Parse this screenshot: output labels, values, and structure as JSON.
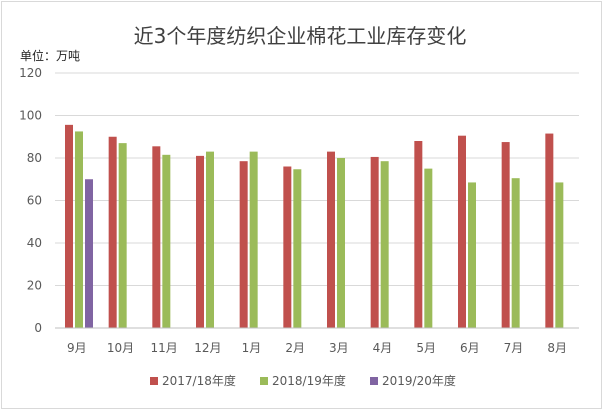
{
  "chart_data": {
    "type": "bar",
    "title": "近3个年度纺织企业棉花工业库存变化",
    "ylabel": "单位：万吨",
    "ylim": [
      0,
      120
    ],
    "yticks": [
      0,
      20,
      40,
      60,
      80,
      100,
      120
    ],
    "grid": true,
    "legend_position": "bottom",
    "categories": [
      "9月",
      "10月",
      "11月",
      "12月",
      "1月",
      "2月",
      "3月",
      "4月",
      "5月",
      "6月",
      "7月",
      "8月"
    ],
    "series": [
      {
        "name": "2017/18年度",
        "color": "#c0504d",
        "values": [
          95.6,
          90.0,
          85.5,
          81.0,
          78.5,
          76.0,
          83.0,
          80.5,
          88.0,
          90.5,
          87.5,
          91.5
        ]
      },
      {
        "name": "2018/19年度",
        "color": "#9bbb59",
        "values": [
          92.5,
          87.0,
          81.5,
          83.0,
          83.0,
          74.7,
          80.0,
          78.5,
          75.0,
          68.5,
          70.5,
          68.5
        ]
      },
      {
        "name": "2019/20年度",
        "color": "#8064a2",
        "values": [
          70.0,
          null,
          null,
          null,
          null,
          null,
          null,
          null,
          null,
          null,
          null,
          null
        ]
      }
    ]
  }
}
